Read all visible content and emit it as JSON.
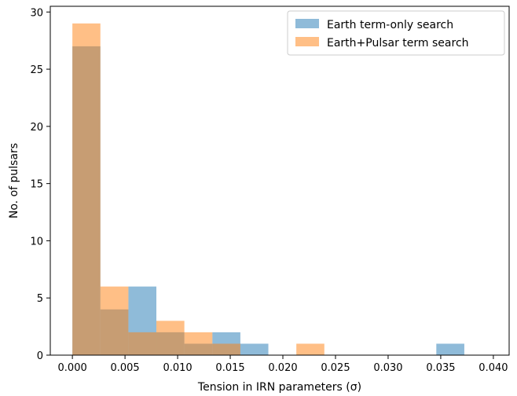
{
  "chart_data": {
    "type": "histogram",
    "xlabel": "Tension in IRN parameters (σ)",
    "ylabel": "No. of pulsars",
    "xlim": [
      -0.0021,
      0.0415
    ],
    "ylim": [
      0,
      30.5
    ],
    "xticks": [
      0.0,
      0.005,
      0.01,
      0.015,
      0.02,
      0.025,
      0.03,
      0.035,
      0.04
    ],
    "xtick_labels": [
      "0.000",
      "0.005",
      "0.010",
      "0.015",
      "0.020",
      "0.025",
      "0.030",
      "0.035",
      "0.040"
    ],
    "yticks": [
      0,
      5,
      10,
      15,
      20,
      25,
      30
    ],
    "ytick_labels": [
      "0",
      "5",
      "10",
      "15",
      "20",
      "25",
      "30"
    ],
    "legend_position": "top-right",
    "series": [
      {
        "name": "Earth term-only search",
        "color": "#1f77b4",
        "opacity": 0.5,
        "bin_edges": [
          0.0,
          0.00266,
          0.00532,
          0.00798,
          0.01064,
          0.0133,
          0.01596,
          0.01862,
          0.02128,
          0.02394,
          0.0266,
          0.02926,
          0.03192,
          0.03458,
          0.03724
        ],
        "counts": [
          27,
          4,
          6,
          2,
          1,
          2,
          1,
          0,
          0,
          0,
          0,
          0,
          0,
          1
        ]
      },
      {
        "name": "Earth+Pulsar term search",
        "color": "#ff7f0e",
        "opacity": 0.5,
        "bin_edges": [
          0.0,
          0.00266,
          0.00532,
          0.00798,
          0.01064,
          0.0133,
          0.01596,
          0.01862,
          0.02128,
          0.02394
        ],
        "counts": [
          29,
          6,
          2,
          3,
          2,
          1,
          0,
          0,
          1
        ]
      }
    ]
  }
}
